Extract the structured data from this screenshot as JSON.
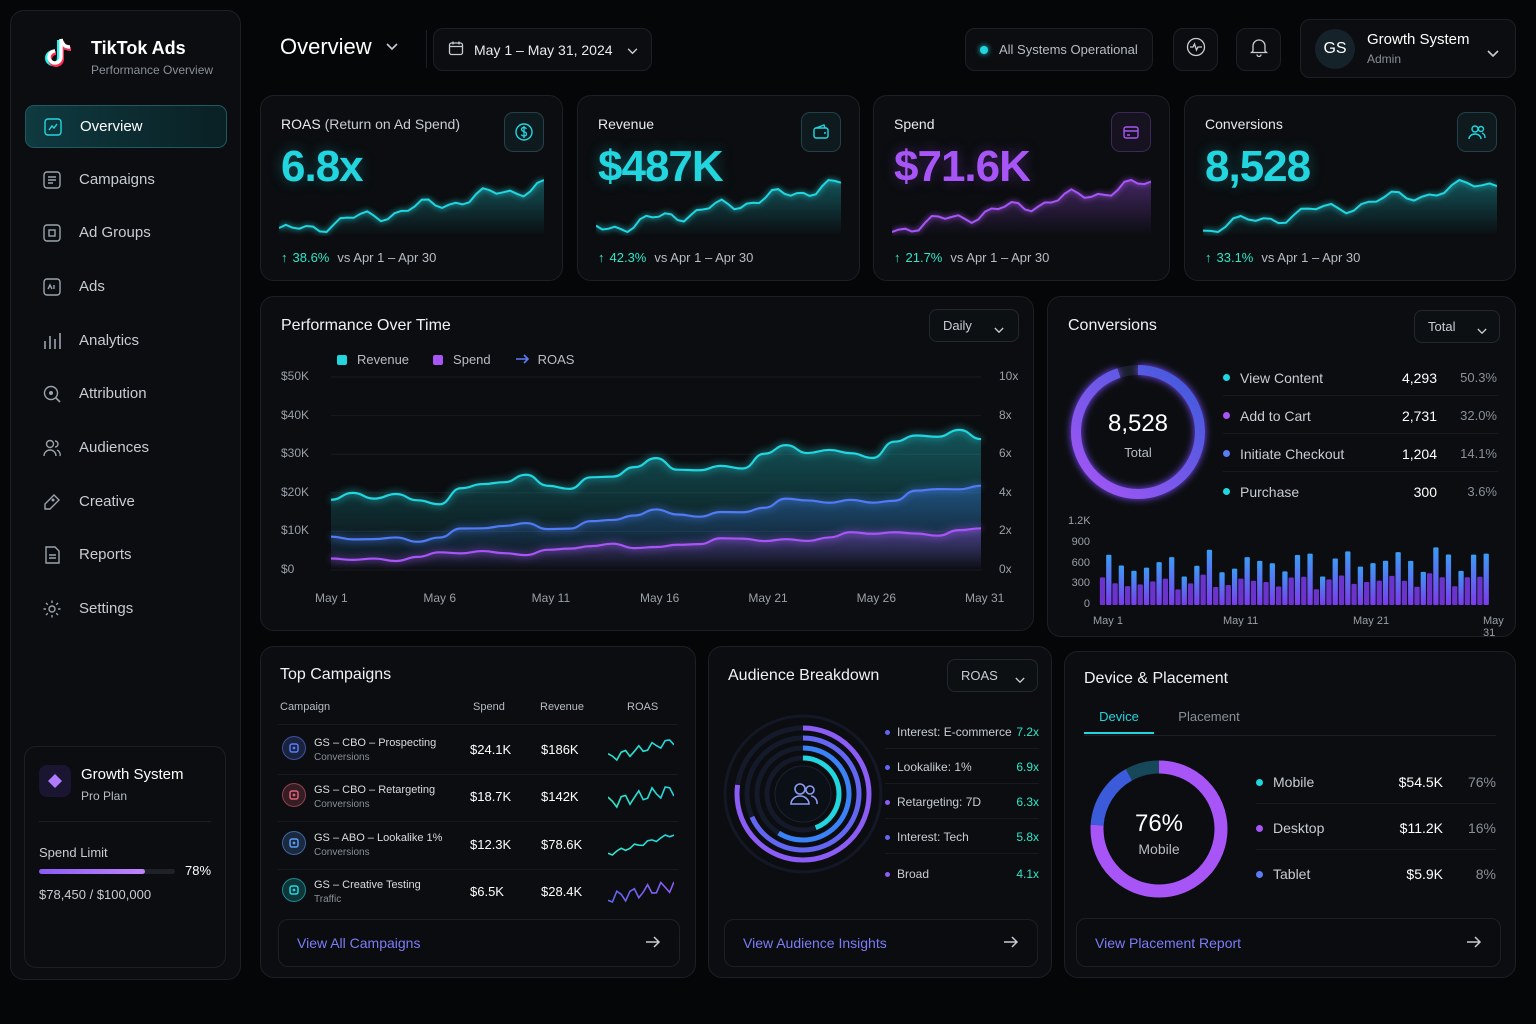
{
  "brand": {
    "name": "TikTok Ads",
    "subtitle": "Performance Overview"
  },
  "nav": [
    {
      "label": "Overview",
      "icon": "overview-icon"
    },
    {
      "label": "Campaigns",
      "icon": "campaigns-icon"
    },
    {
      "label": "Ad Groups",
      "icon": "ad-groups-icon"
    },
    {
      "label": "Ads",
      "icon": "ads-icon"
    },
    {
      "label": "Analytics",
      "icon": "analytics-icon"
    },
    {
      "label": "Attribution",
      "icon": "attribution-icon"
    },
    {
      "label": "Audiences",
      "icon": "audiences-icon"
    },
    {
      "label": "Creative",
      "icon": "creative-icon"
    },
    {
      "label": "Reports",
      "icon": "reports-icon"
    },
    {
      "label": "Settings",
      "icon": "settings-icon"
    }
  ],
  "plan": {
    "name": "Growth System",
    "tier": "Pro Plan",
    "limit_label": "Spend Limit",
    "percent": "78%",
    "percent_value": 0.78,
    "amount": "$78,450 / $100,000"
  },
  "header": {
    "title": "Overview",
    "date_range": "May 1 – May 31, 2024",
    "status": "All Systems Operational",
    "user_initials": "GS",
    "user_name": "Growth System",
    "user_role": "Admin"
  },
  "kpis": [
    {
      "title": "ROAS",
      "title_suffix": " (Return on Ad Spend)",
      "value": "6.8x",
      "delta": "38.6%",
      "compare": "vs Apr 1 – Apr 30",
      "color": "#22d6e0",
      "icon": "dollar-icon"
    },
    {
      "title": "Revenue",
      "title_suffix": "",
      "value": "$487K",
      "delta": "42.3%",
      "compare": "vs Apr 1 – Apr 30",
      "color": "#22d6e0",
      "icon": "wallet-icon"
    },
    {
      "title": "Spend",
      "title_suffix": "",
      "value": "$71.6K",
      "delta": "21.7%",
      "compare": "vs Apr 1 – Apr 30",
      "color": "#a855f7",
      "icon": "credit-card-icon"
    },
    {
      "title": "Conversions",
      "title_suffix": "",
      "value": "8,528",
      "delta": "33.1%",
      "compare": "vs Apr 1 – Apr 30",
      "color": "#22d6e0",
      "icon": "users-icon"
    }
  ],
  "performance": {
    "title": "Performance Over Time",
    "granularity": "Daily",
    "legend": {
      "revenue": "Revenue",
      "spend": "Spend",
      "roas": "ROAS"
    },
    "y_left": [
      "$50K",
      "$40K",
      "$30K",
      "$20K",
      "$10K",
      "$0"
    ],
    "y_right": [
      "10x",
      "8x",
      "6x",
      "4x",
      "2x",
      "0x"
    ],
    "x_ticks": [
      "May 1",
      "May 6",
      "May 11",
      "May 16",
      "May 21",
      "May 26",
      "May 31"
    ]
  },
  "conversions": {
    "title": "Conversions",
    "filter": "Total",
    "total": "8,528",
    "total_label": "Total",
    "items": [
      {
        "name": "View Content",
        "count": "4,293",
        "pct": "50.3%",
        "color": "#22d6e0"
      },
      {
        "name": "Add to Cart",
        "count": "2,731",
        "pct": "32.0%",
        "color": "#a855f7"
      },
      {
        "name": "Initiate Checkout",
        "count": "1,204",
        "pct": "14.1%",
        "color": "#5b7cf5"
      },
      {
        "name": "Purchase",
        "count": "300",
        "pct": "3.6%",
        "color": "#22d6e0"
      }
    ],
    "bar_y": [
      "1.2K",
      "900",
      "600",
      "300",
      "0"
    ],
    "bar_x": [
      "May 1",
      "May 11",
      "May 21",
      "May 31"
    ]
  },
  "campaigns": {
    "title": "Top Campaigns",
    "columns": [
      "Campaign",
      "Spend",
      "Revenue",
      "ROAS"
    ],
    "rows": [
      {
        "name": "GS – CBO – Prospecting",
        "type": "Conversions",
        "spend": "$24.1K",
        "revenue": "$186K",
        "icon_color": "#5b7cf5"
      },
      {
        "name": "GS – CBO – Retargeting",
        "type": "Conversions",
        "spend": "$18.7K",
        "revenue": "$142K",
        "icon_color": "#e0607a"
      },
      {
        "name": "GS – ABO – Lookalike 1%",
        "type": "Conversions",
        "spend": "$12.3K",
        "revenue": "$78.6K",
        "icon_color": "#5b9cf5"
      },
      {
        "name": "GS – Creative Testing",
        "type": "Traffic",
        "spend": "$6.5K",
        "revenue": "$28.4K",
        "icon_color": "#22d6e0"
      }
    ],
    "link": "View All Campaigns"
  },
  "audience": {
    "title": "Audience Breakdown",
    "metric": "ROAS",
    "items": [
      {
        "name": "Interest: E-commerce",
        "value": "7.2x"
      },
      {
        "name": "Lookalike: 1%",
        "value": "6.9x"
      },
      {
        "name": "Retargeting: 7D",
        "value": "6.3x"
      },
      {
        "name": "Interest: Tech",
        "value": "5.8x"
      },
      {
        "name": "Broad",
        "value": "4.1x"
      }
    ],
    "link": "View Audience Insights"
  },
  "device": {
    "title": "Device & Placement",
    "tabs": [
      "Device",
      "Placement"
    ],
    "center_value": "76%",
    "center_label": "Mobile",
    "items": [
      {
        "name": "Mobile",
        "value": "$54.5K",
        "pct": "76%",
        "color": "#22d6e0"
      },
      {
        "name": "Desktop",
        "value": "$11.2K",
        "pct": "16%",
        "color": "#a855f7"
      },
      {
        "name": "Tablet",
        "value": "$5.9K",
        "pct": "8%",
        "color": "#5b7cf5"
      }
    ],
    "link": "View Placement Report"
  }
}
